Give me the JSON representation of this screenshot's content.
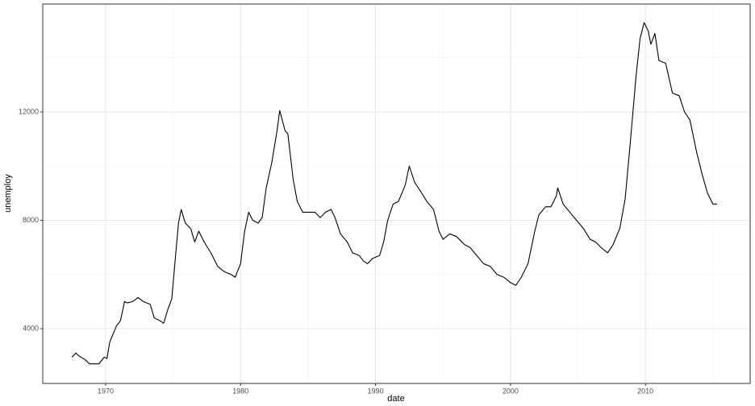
{
  "chart_data": {
    "type": "line",
    "x_label": "date",
    "y_label": "unemploy",
    "x": [
      1967.5,
      1967.8,
      1968.0,
      1968.5,
      1968.8,
      1969.5,
      1969.9,
      1970.1,
      1970.3,
      1970.8,
      1971.1,
      1971.4,
      1971.6,
      1972.0,
      1972.4,
      1972.8,
      1973.3,
      1973.6,
      1974.0,
      1974.3,
      1974.6,
      1974.9,
      1975.2,
      1975.4,
      1975.6,
      1975.9,
      1976.3,
      1976.6,
      1976.9,
      1977.3,
      1977.8,
      1978.3,
      1978.8,
      1979.3,
      1979.6,
      1980.0,
      1980.3,
      1980.6,
      1980.9,
      1981.3,
      1981.6,
      1981.9,
      1982.3,
      1982.7,
      1982.9,
      1983.3,
      1983.5,
      1983.9,
      1984.2,
      1984.6,
      1985.0,
      1985.5,
      1985.9,
      1986.3,
      1986.7,
      1987.0,
      1987.4,
      1987.9,
      1988.3,
      1988.8,
      1989.1,
      1989.4,
      1989.8,
      1990.3,
      1990.6,
      1990.9,
      1991.3,
      1991.7,
      1992.2,
      1992.5,
      1992.9,
      1993.3,
      1993.8,
      1994.3,
      1994.7,
      1995.0,
      1995.5,
      1996.0,
      1996.6,
      1997.0,
      1997.5,
      1998.0,
      1998.5,
      1999.0,
      1999.5,
      2000.0,
      2000.4,
      2000.8,
      2001.3,
      2001.8,
      2002.1,
      2002.6,
      2003.0,
      2003.4,
      2003.5,
      2003.9,
      2004.4,
      2004.9,
      2005.4,
      2005.9,
      2006.3,
      2006.7,
      2007.2,
      2007.6,
      2008.1,
      2008.5,
      2008.9,
      2009.3,
      2009.6,
      2009.9,
      2010.2,
      2010.4,
      2010.7,
      2011.0,
      2011.5,
      2012.0,
      2012.5,
      2012.9,
      2013.3,
      2013.8,
      2014.2,
      2014.6,
      2015.0,
      2015.3
    ],
    "series": [
      {
        "color": "#000000",
        "values": [
          2950,
          3100,
          3000,
          2850,
          2700,
          2700,
          2950,
          2900,
          3500,
          4100,
          4300,
          5000,
          4950,
          5000,
          5150,
          5000,
          4900,
          4400,
          4300,
          4200,
          4700,
          5100,
          6800,
          7900,
          8400,
          7900,
          7700,
          7200,
          7600,
          7200,
          6800,
          6300,
          6100,
          6000,
          5900,
          6400,
          7600,
          8300,
          8000,
          7900,
          8100,
          9200,
          10100,
          11300,
          12050,
          11300,
          11200,
          9500,
          8700,
          8300,
          8300,
          8300,
          8100,
          8300,
          8400,
          8100,
          7500,
          7200,
          6800,
          6700,
          6500,
          6400,
          6600,
          6700,
          7200,
          8000,
          8600,
          8700,
          9300,
          10000,
          9400,
          9100,
          8700,
          8400,
          7600,
          7300,
          7500,
          7400,
          7100,
          7000,
          6700,
          6400,
          6300,
          6000,
          5900,
          5700,
          5600,
          5900,
          6400,
          7600,
          8200,
          8500,
          8500,
          8900,
          9200,
          8600,
          8300,
          8000,
          7700,
          7300,
          7200,
          7000,
          6800,
          7100,
          7700,
          8800,
          11000,
          13300,
          14700,
          15300,
          15000,
          14500,
          14900,
          13900,
          13800,
          12700,
          12600,
          12000,
          11700,
          10500,
          9700,
          9000,
          8600,
          8600
        ]
      }
    ],
    "xlim": [
      1965.34,
      2017.76
    ],
    "xticks": [
      1970,
      1980,
      1990,
      2000,
      2010
    ],
    "x_minor_ticks": [
      1975,
      1985,
      1995,
      2005,
      2015
    ],
    "ylim": [
      1978,
      15985
    ],
    "yticks": [
      4000,
      8000,
      12000
    ],
    "y_minor_ticks": [
      6000,
      10000,
      14000
    ],
    "grid": true
  }
}
